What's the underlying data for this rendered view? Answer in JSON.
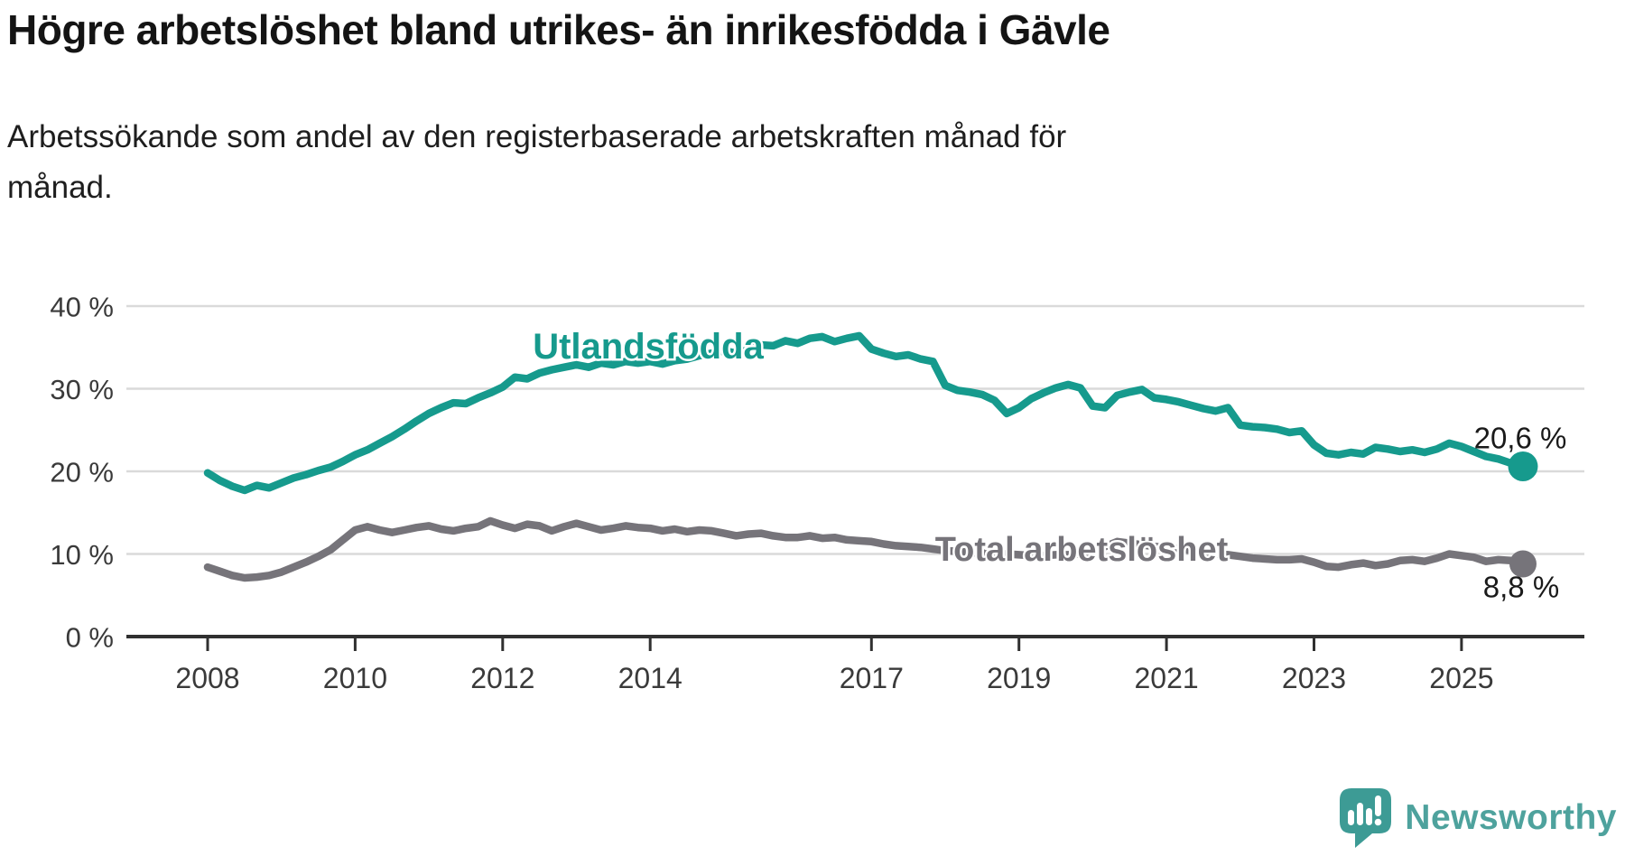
{
  "header": {
    "title": "Högre arbetslöshet bland utrikes- än inrikesfödda i Gävle",
    "subtitle": "Arbetssökande som andel av den registerbaserade arbetskraften månad för\nmånad."
  },
  "chart_data": {
    "type": "line",
    "title": "Högre arbetslöshet bland utrikes- än inrikesfödda i Gävle",
    "xlabel": "",
    "ylabel": "",
    "grid": "horizontal-only",
    "x_axis": {
      "tick_years": [
        2008,
        2010,
        2012,
        2014,
        2017,
        2019,
        2021,
        2023,
        2025
      ],
      "tick_labels": [
        "2008",
        "2010",
        "2012",
        "2014",
        "2017",
        "2019",
        "2021",
        "2023",
        "2025"
      ],
      "domain": [
        2008.0,
        2025.83
      ]
    },
    "y_axis": {
      "ticks": [
        0,
        10,
        20,
        30,
        40
      ],
      "tick_labels": [
        "0 %",
        "10 %",
        "20 %",
        "30 %",
        "40 %"
      ],
      "range": [
        0,
        40
      ]
    },
    "series": [
      {
        "name": "Utlandsfödda",
        "color": "#169a8d",
        "end_label": "20,6 %",
        "end_value": 20.6,
        "start_year": 2008,
        "step_months": 2,
        "values": [
          19.8,
          18.9,
          18.2,
          17.7,
          18.3,
          18.0,
          18.6,
          19.2,
          19.6,
          20.1,
          20.5,
          21.2,
          22.0,
          22.6,
          23.4,
          24.2,
          25.1,
          26.1,
          27.0,
          27.7,
          28.3,
          28.2,
          28.9,
          29.5,
          30.2,
          31.4,
          31.2,
          31.9,
          32.3,
          32.6,
          32.9,
          32.6,
          33.1,
          32.9,
          33.3,
          33.1,
          33.3,
          33.0,
          33.4,
          33.6,
          34.0,
          34.3,
          34.6,
          34.3,
          34.9,
          35.3,
          35.2,
          35.8,
          35.5,
          36.1,
          36.3,
          35.7,
          36.1,
          36.4,
          34.8,
          34.3,
          33.9,
          34.1,
          33.6,
          33.3,
          30.4,
          29.8,
          29.6,
          29.3,
          28.6,
          27.0,
          27.7,
          28.8,
          29.5,
          30.1,
          30.5,
          30.1,
          27.9,
          27.7,
          29.2,
          29.6,
          29.9,
          28.9,
          28.7,
          28.4,
          28.0,
          27.6,
          27.3,
          27.7,
          25.6,
          25.4,
          25.3,
          25.1,
          24.7,
          24.9,
          23.2,
          22.2,
          22.0,
          22.3,
          22.1,
          22.9,
          22.7,
          22.4,
          22.6,
          22.3,
          22.7,
          23.4,
          23.0,
          22.4,
          21.8,
          21.5,
          21.0,
          20.6
        ]
      },
      {
        "name": "Total arbetslöshet",
        "color": "#76747a",
        "end_label": "8,8 %",
        "end_value": 8.8,
        "start_year": 2008,
        "step_months": 2,
        "values": [
          8.4,
          7.9,
          7.4,
          7.1,
          7.2,
          7.4,
          7.8,
          8.4,
          9.0,
          9.7,
          10.5,
          11.7,
          12.9,
          13.3,
          12.9,
          12.6,
          12.9,
          13.2,
          13.4,
          13.0,
          12.8,
          13.1,
          13.3,
          14.0,
          13.5,
          13.1,
          13.6,
          13.4,
          12.8,
          13.3,
          13.7,
          13.3,
          12.9,
          13.1,
          13.4,
          13.2,
          13.1,
          12.8,
          13.0,
          12.7,
          12.9,
          12.8,
          12.5,
          12.2,
          12.4,
          12.5,
          12.2,
          12.0,
          12.0,
          12.2,
          11.9,
          12.0,
          11.7,
          11.6,
          11.5,
          11.2,
          11.0,
          10.9,
          10.8,
          10.6,
          10.4,
          10.3,
          10.2,
          10.1,
          10.0,
          10.0,
          9.9,
          9.8,
          9.8,
          9.9,
          9.9,
          10.0,
          10.1,
          10.9,
          11.5,
          11.3,
          11.1,
          10.9,
          10.8,
          10.6,
          10.4,
          10.2,
          10.0,
          9.9,
          9.7,
          9.5,
          9.4,
          9.3,
          9.3,
          9.4,
          9.0,
          8.5,
          8.4,
          8.7,
          8.9,
          8.6,
          8.8,
          9.2,
          9.3,
          9.1,
          9.5,
          10.0,
          9.8,
          9.6,
          9.1,
          9.3,
          9.2,
          8.8
        ]
      }
    ]
  },
  "footer": {
    "brand": "Newsworthy",
    "brand_color": "#4ea29d",
    "logo_bubble_color": "#3d9b95",
    "logo_icon": "newsworthy-speech-bubble-barchart-icon"
  },
  "colors": {
    "background": "#ffffff",
    "gridline": "#dadada",
    "axis": "#303030",
    "tick_text": "#3a3a3a",
    "title_text": "#141414",
    "annotation_text": "#1a1a1a",
    "series_utlandsfodda": "#169a8d",
    "series_total": "#76747a"
  }
}
